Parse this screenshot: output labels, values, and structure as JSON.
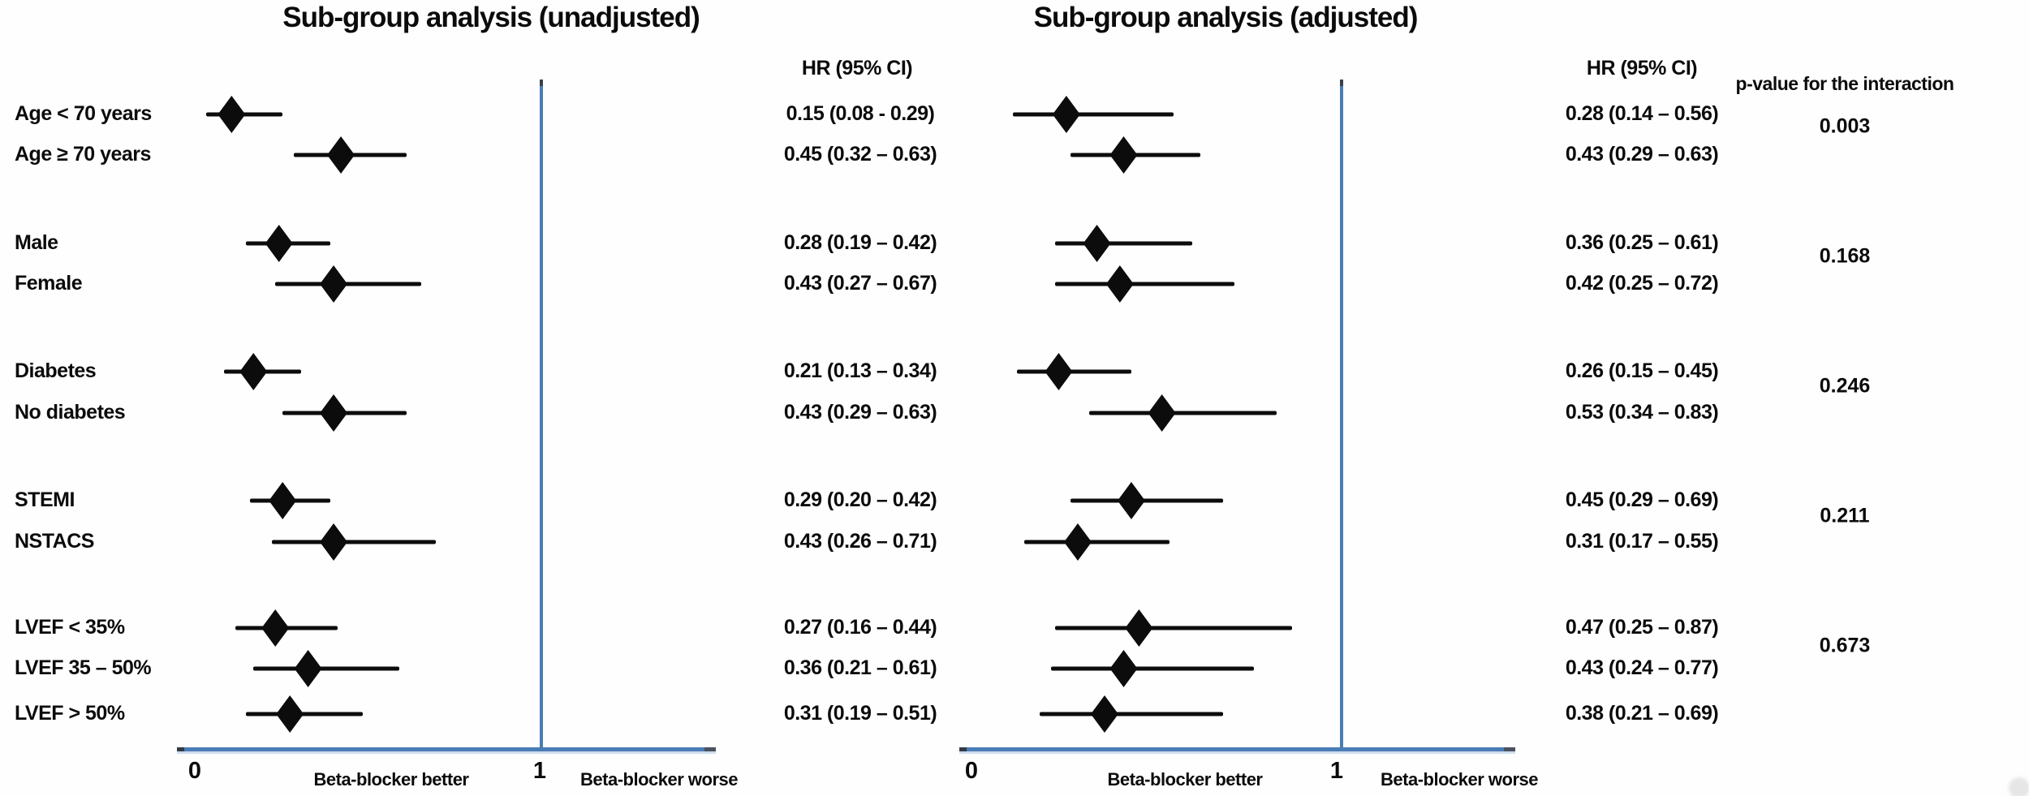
{
  "chart_data": {
    "type": "forest",
    "rows": [
      "Age < 70 years",
      "Age ≥ 70 years",
      "Male",
      "Female",
      "Diabetes",
      "No diabetes",
      "STEMI",
      "NSTACS",
      "LVEF < 35%",
      "LVEF 35 – 50%",
      "LVEF > 50%"
    ],
    "row_groups": [
      [
        0,
        1
      ],
      [
        2,
        3
      ],
      [
        4,
        5
      ],
      [
        6,
        7
      ],
      [
        8,
        9,
        10
      ]
    ],
    "panels": [
      {
        "title": "Sub-group analysis (unadjusted)",
        "hr_header": "HR (95% CI)",
        "reference_line": 1,
        "xlim": [
          0,
          1.48
        ],
        "estimates": [
          {
            "hr": 0.15,
            "lo": 0.08,
            "hi": 0.29,
            "label": "0.15 (0.08 - 0.29)"
          },
          {
            "hr": 0.45,
            "lo": 0.32,
            "hi": 0.63,
            "label": "0.45 (0.32 – 0.63)"
          },
          {
            "hr": 0.28,
            "lo": 0.19,
            "hi": 0.42,
            "label": "0.28 (0.19 – 0.42)"
          },
          {
            "hr": 0.43,
            "lo": 0.27,
            "hi": 0.67,
            "label": "0.43 (0.27 – 0.67)"
          },
          {
            "hr": 0.21,
            "lo": 0.13,
            "hi": 0.34,
            "label": "0.21 (0.13 – 0.34)"
          },
          {
            "hr": 0.43,
            "lo": 0.29,
            "hi": 0.63,
            "label": "0.43 (0.29 – 0.63)"
          },
          {
            "hr": 0.29,
            "lo": 0.2,
            "hi": 0.42,
            "label": "0.29 (0.20 – 0.42)"
          },
          {
            "hr": 0.43,
            "lo": 0.26,
            "hi": 0.71,
            "label": "0.43 (0.26 – 0.71)"
          },
          {
            "hr": 0.27,
            "lo": 0.16,
            "hi": 0.44,
            "label": "0.27 (0.16 – 0.44)"
          },
          {
            "hr": 0.36,
            "lo": 0.21,
            "hi": 0.61,
            "label": "0.36 (0.21 – 0.61)"
          },
          {
            "hr": 0.31,
            "lo": 0.19,
            "hi": 0.51,
            "label": "0.31 (0.19 – 0.51)"
          }
        ],
        "x_axis": {
          "ticks": [
            "0",
            "1"
          ],
          "better_label": "Beta-blocker better",
          "worse_label": "Beta-blocker worse"
        }
      },
      {
        "title": "Sub-group analysis (adjusted)",
        "hr_header": "HR (95% CI)",
        "reference_line": 1,
        "xlim": [
          0,
          1.46
        ],
        "estimates": [
          {
            "hr": 0.28,
            "lo": 0.14,
            "hi": 0.56,
            "label": "0.28 (0.14 – 0.56)"
          },
          {
            "hr": 0.43,
            "lo": 0.29,
            "hi": 0.63,
            "label": "0.43 (0.29 – 0.63)"
          },
          {
            "hr": 0.36,
            "lo": 0.25,
            "hi": 0.61,
            "label": "0.36 (0.25 – 0.61)"
          },
          {
            "hr": 0.42,
            "lo": 0.25,
            "hi": 0.72,
            "label": "0.42 (0.25 – 0.72)"
          },
          {
            "hr": 0.26,
            "lo": 0.15,
            "hi": 0.45,
            "label": "0.26 (0.15 – 0.45)"
          },
          {
            "hr": 0.53,
            "lo": 0.34,
            "hi": 0.83,
            "label": "0.53 (0.34 – 0.83)"
          },
          {
            "hr": 0.45,
            "lo": 0.29,
            "hi": 0.69,
            "label": "0.45 (0.29 – 0.69)"
          },
          {
            "hr": 0.31,
            "lo": 0.17,
            "hi": 0.55,
            "label": "0.31 (0.17 – 0.55)"
          },
          {
            "hr": 0.47,
            "lo": 0.25,
            "hi": 0.87,
            "label": "0.47 (0.25 – 0.87)"
          },
          {
            "hr": 0.43,
            "lo": 0.24,
            "hi": 0.77,
            "label": "0.43 (0.24 – 0.77)"
          },
          {
            "hr": 0.38,
            "lo": 0.21,
            "hi": 0.69,
            "label": "0.38 (0.21 – 0.69)"
          }
        ],
        "x_axis": {
          "ticks": [
            "0",
            "1"
          ],
          "better_label": "Beta-blocker better",
          "worse_label": "Beta-blocker worse"
        }
      }
    ],
    "interaction": {
      "header": "p-value for the interaction",
      "values": [
        "0.003",
        "0.168",
        "0.246",
        "0.211",
        "0.673"
      ]
    },
    "colors": {
      "axis_blue": "#4a7cb5",
      "marker_black": "#0c0c0c"
    }
  }
}
